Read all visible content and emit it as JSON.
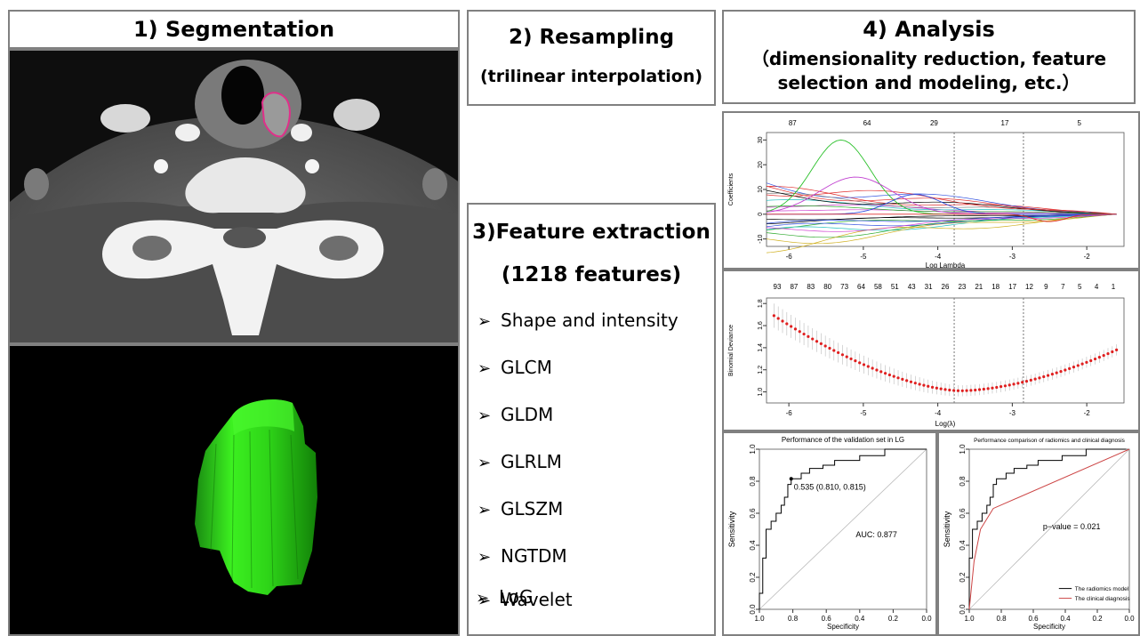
{
  "segmentation": {
    "title": "1) Segmentation"
  },
  "resampling": {
    "title": "2) Resampling",
    "subtitle": "(trilinear interpolation)"
  },
  "analysis": {
    "title": "4) Analysis",
    "subtitle_line1": "（dimensionality reduction, feature",
    "subtitle_line2": "selection and modeling, etc.）"
  },
  "feature_extraction": {
    "title": "3)Feature extraction",
    "count": "(1218 features)",
    "items": [
      "Shape and intensity",
      "GLCM",
      "GLDM",
      "GLRLM",
      "GLSZM",
      "NGTDM",
      "Wavelet",
      "LoG"
    ]
  },
  "chart_data": [
    {
      "type": "line",
      "xlabel": "Log Lambda",
      "ylabel": "Coefficients",
      "xlim": [
        -6.3,
        -1.5
      ],
      "ylim": [
        -13,
        33
      ],
      "x_ticks": [
        -6,
        -5,
        -4,
        -3,
        -2
      ],
      "y_ticks": [
        -10,
        0,
        10,
        20,
        30
      ],
      "top_ticks": [
        {
          "x": -5.95,
          "label": "87"
        },
        {
          "x": -4.95,
          "label": "64"
        },
        {
          "x": -4.05,
          "label": "29"
        },
        {
          "x": -3.1,
          "label": "17"
        },
        {
          "x": -2.1,
          "label": "5"
        }
      ],
      "vlines": [
        -3.78,
        -2.85
      ]
    },
    {
      "type": "scatter",
      "xlabel": "Log(λ)",
      "ylabel": "Binomial Deviance",
      "xlim": [
        -6.3,
        -1.5
      ],
      "ylim": [
        0.9,
        1.85
      ],
      "x_ticks": [
        -6,
        -5,
        -4,
        -3,
        -2
      ],
      "y_ticks": [
        1.0,
        1.2,
        1.4,
        1.6,
        1.8
      ],
      "top_labels": [
        "93",
        "87",
        "83",
        "80",
        "73",
        "64",
        "58",
        "51",
        "43",
        "31",
        "26",
        "23",
        "21",
        "18",
        "17",
        "12",
        "9",
        "7",
        "5",
        "4",
        "1"
      ],
      "vlines": [
        -3.78,
        -2.85
      ],
      "min_value": 1.01
    },
    {
      "type": "line",
      "title": "Performance of the validation set in LG",
      "xlabel": "Specificity",
      "ylabel": "Sensitivity",
      "xlim": [
        1.0,
        0.0
      ],
      "ylim": [
        0.0,
        1.0
      ],
      "ticks": [
        1.0,
        0.8,
        0.6,
        0.4,
        0.2,
        0.0
      ],
      "annotations": [
        "0.535 (0.810, 0.815)",
        "AUC: 0.877"
      ],
      "threshold_point": {
        "x": 0.81,
        "y": 0.815
      }
    },
    {
      "type": "line",
      "title": "Performance comparison of radiomics and clinical diagnosis",
      "xlabel": "Specificity",
      "ylabel": "Sensitivity",
      "xlim": [
        1.0,
        0.0
      ],
      "ylim": [
        0.0,
        1.0
      ],
      "ticks": [
        1.0,
        0.8,
        0.6,
        0.4,
        0.2,
        0.0
      ],
      "annotations": [
        "p−value = 0.021"
      ],
      "series": [
        {
          "name": "The radiomics model",
          "color": "#000000"
        },
        {
          "name": "The clinical diagnosis",
          "color": "#cc4444"
        }
      ]
    }
  ]
}
